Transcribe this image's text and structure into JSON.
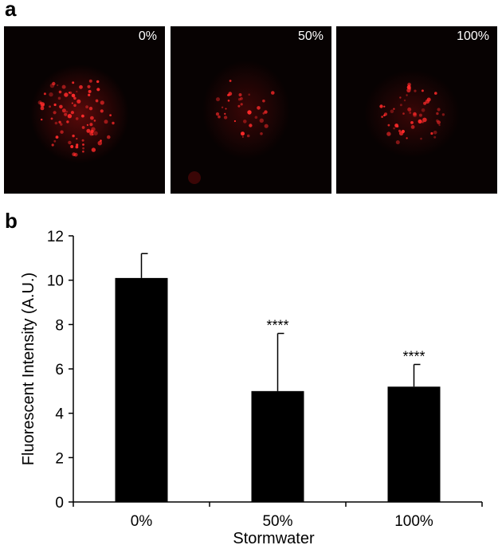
{
  "panels": {
    "a_label": "a",
    "b_label": "b"
  },
  "micrographs": [
    {
      "label": "0%"
    },
    {
      "label": "50%"
    },
    {
      "label": "100%"
    }
  ],
  "colors": {
    "bar": "#000000",
    "micrograph_background": "#070202",
    "fluorescence": "#ff2a2a"
  },
  "chart_data": {
    "type": "bar",
    "categories": [
      "0%",
      "50%",
      "100%"
    ],
    "values": [
      10.1,
      5.0,
      5.2
    ],
    "error_upper": [
      1.1,
      2.6,
      1.0
    ],
    "annotations": [
      "",
      "****",
      "****"
    ],
    "xlabel": "Stormwater",
    "ylabel": "Fluorescent Intensity (A.U.)",
    "ylim": [
      0,
      12
    ],
    "yticks": [
      0,
      2,
      4,
      6,
      8,
      10,
      12
    ],
    "grid": false
  }
}
